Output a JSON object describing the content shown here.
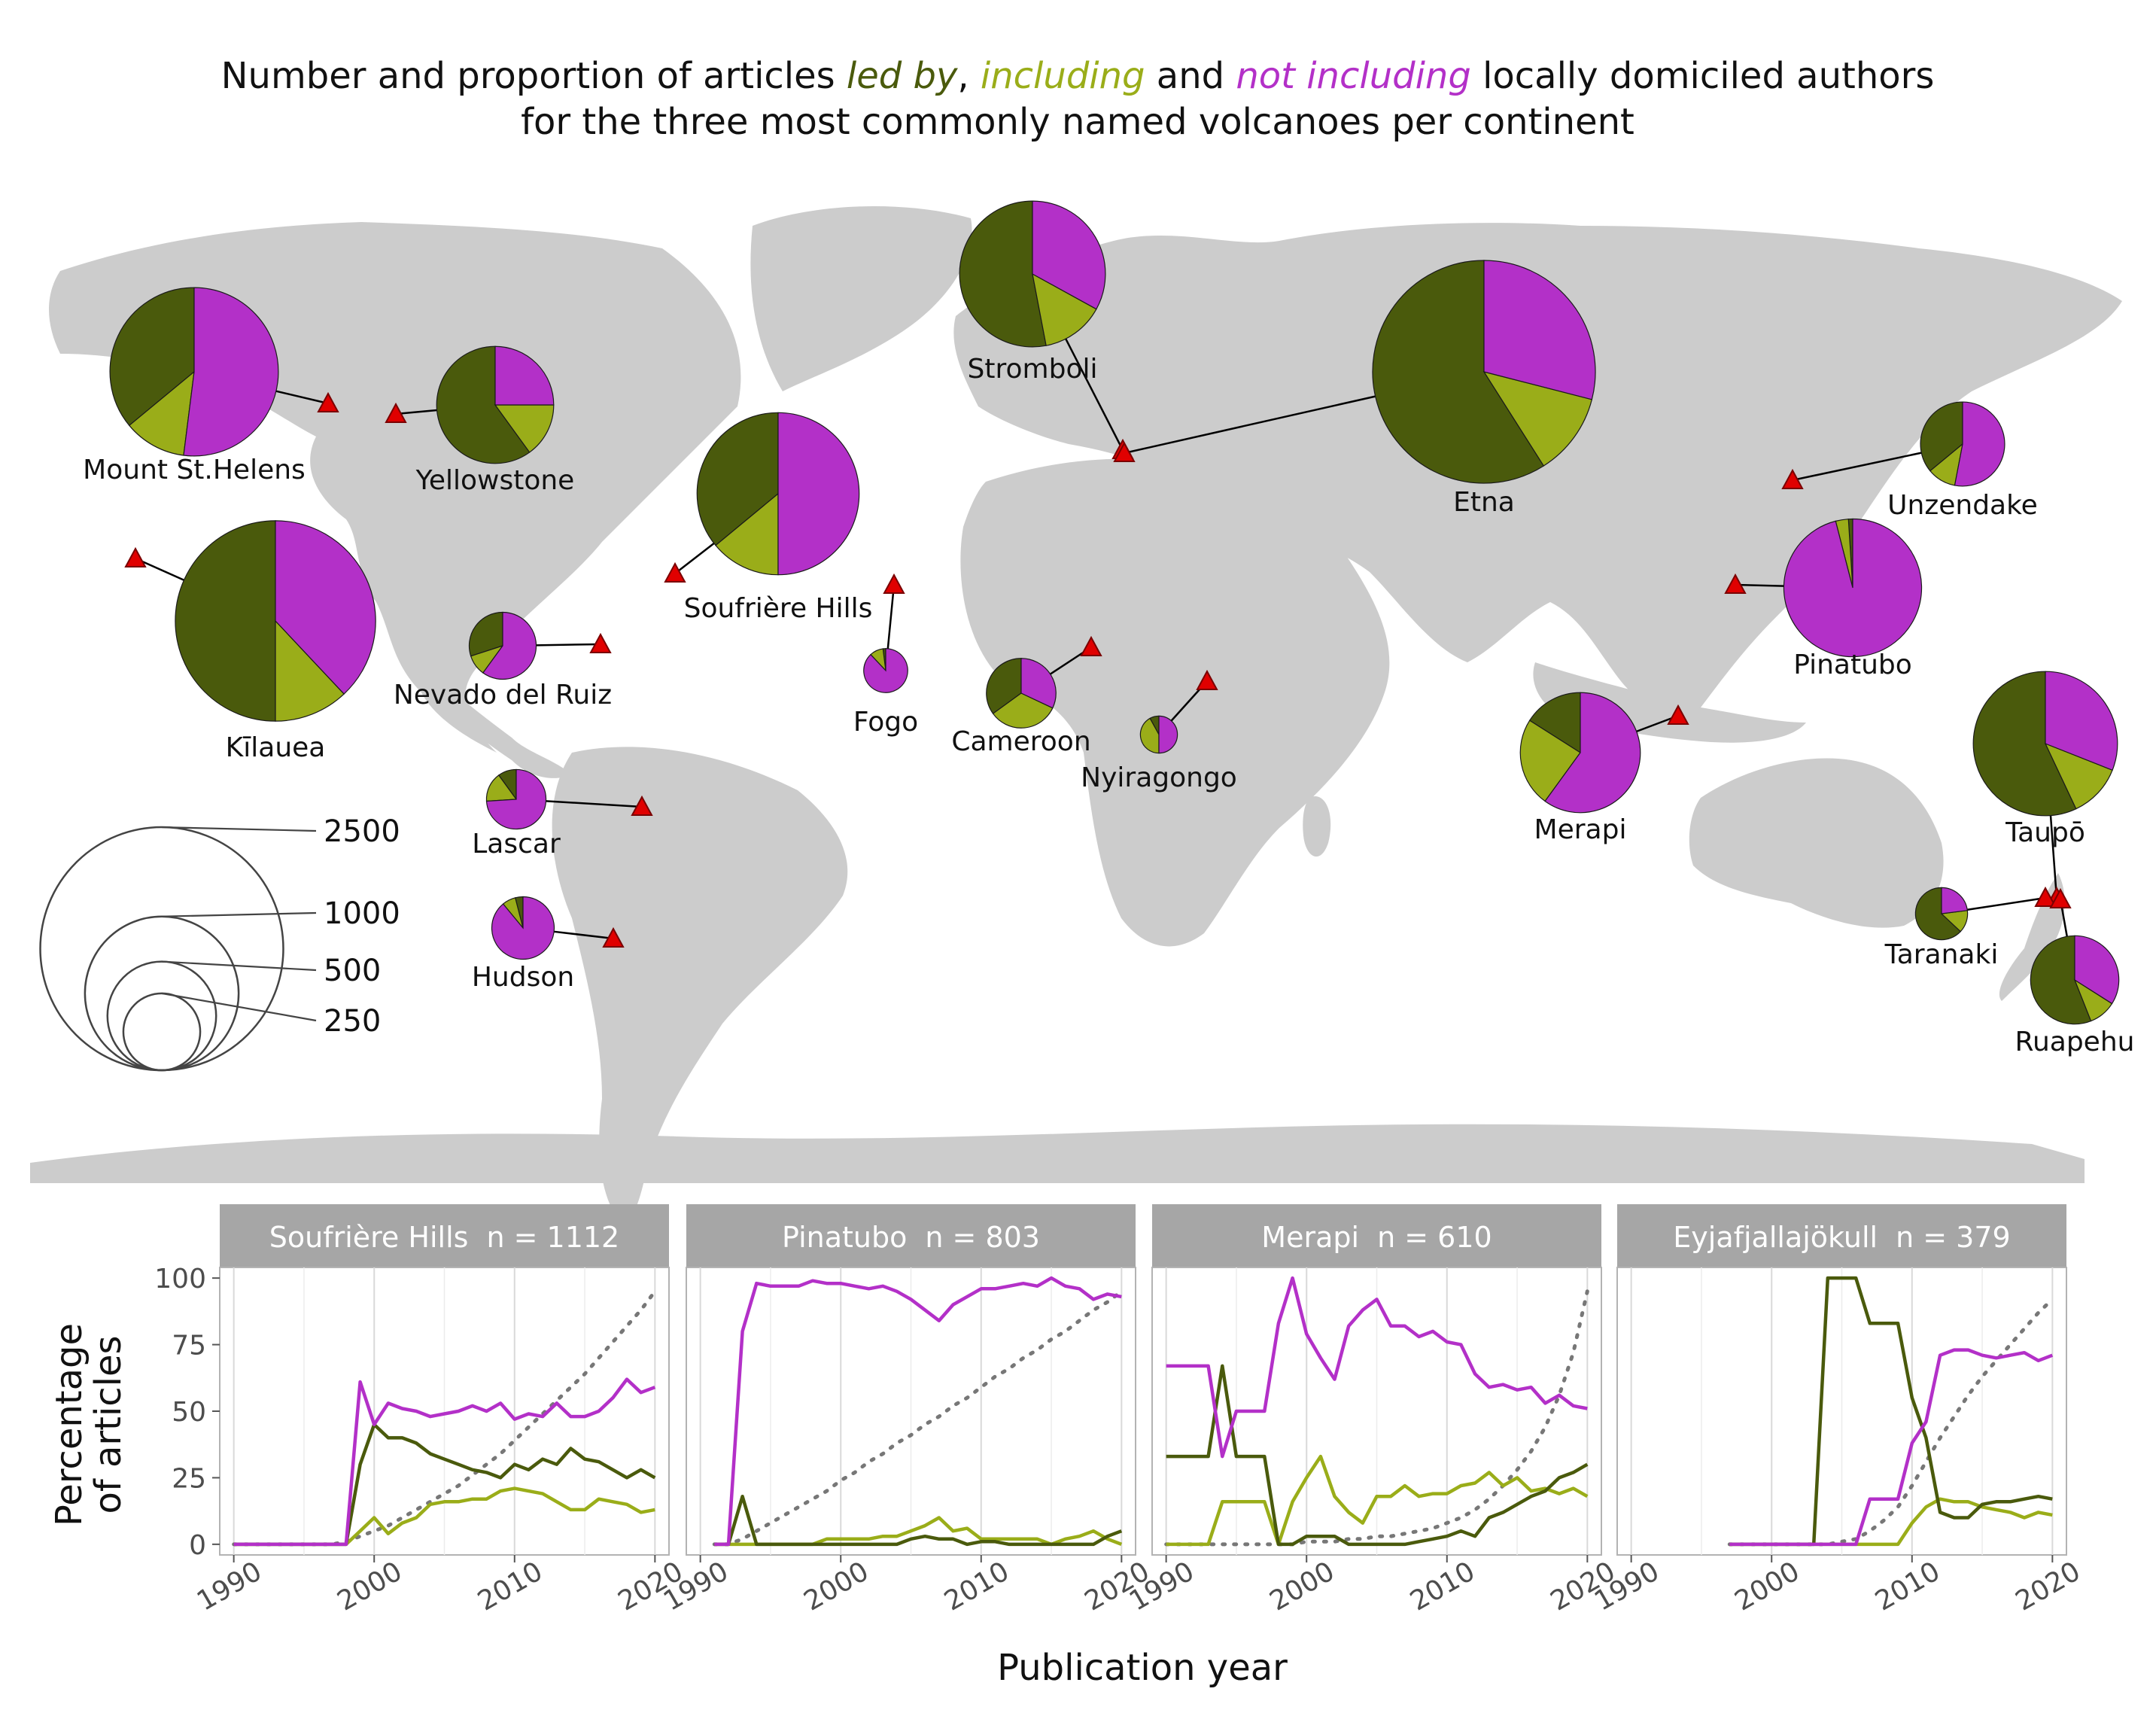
{
  "title": {
    "line1_pre": "Number and proportion of articles ",
    "led_by": "led by",
    "sep": ", ",
    "including": "including",
    "and": " and ",
    "not_including": "not including",
    "line1_post": " locally domiciled authors",
    "line2": "for the three most commonly named volcanoes per continent"
  },
  "colors": {
    "led_by": "#4a5a0c",
    "including": "#9aad19",
    "not_including": "#b330c8",
    "map": "#cccccc",
    "marker": "#e00000",
    "strip": "#a6a6a6",
    "dotted": "#777777"
  },
  "size_legend": {
    "labels": [
      "2500",
      "1000",
      "500",
      "250"
    ],
    "values": [
      2500,
      1000,
      500,
      250
    ]
  },
  "volcanoes": [
    {
      "name": "Mount St.Helens",
      "n": 1200,
      "shares": [
        0.36,
        0.12,
        0.52
      ]
    },
    {
      "name": "Yellowstone",
      "n": 580,
      "shares": [
        0.6,
        0.15,
        0.25
      ]
    },
    {
      "name": "Kīlauea",
      "n": 1700,
      "shares": [
        0.5,
        0.12,
        0.38
      ]
    },
    {
      "name": "Nevado del Ruiz",
      "n": 190,
      "shares": [
        0.3,
        0.1,
        0.6
      ]
    },
    {
      "name": "Lascar",
      "n": 150,
      "shares": [
        0.1,
        0.16,
        0.74
      ]
    },
    {
      "name": "Hudson",
      "n": 165,
      "shares": [
        0.04,
        0.07,
        0.89
      ]
    },
    {
      "name": "Soufrière Hills",
      "n": 1112,
      "shares": [
        0.36,
        0.14,
        0.5
      ]
    },
    {
      "name": "Fogo",
      "n": 82,
      "shares": [
        0.02,
        0.1,
        0.88
      ]
    },
    {
      "name": "Stromboli",
      "n": 900,
      "shares": [
        0.53,
        0.14,
        0.33
      ]
    },
    {
      "name": "Etna",
      "n": 2100,
      "shares": [
        0.59,
        0.12,
        0.29
      ]
    },
    {
      "name": "Cameroon",
      "n": 205,
      "shares": [
        0.35,
        0.33,
        0.32
      ]
    },
    {
      "name": "Nyiragongo",
      "n": 58,
      "shares": [
        0.08,
        0.42,
        0.5
      ]
    },
    {
      "name": "Unzendake",
      "n": 300,
      "shares": [
        0.36,
        0.11,
        0.53
      ]
    },
    {
      "name": "Pinatubo",
      "n": 803,
      "shares": [
        0.01,
        0.03,
        0.96
      ]
    },
    {
      "name": "Merapi",
      "n": 610,
      "shares": [
        0.16,
        0.24,
        0.6
      ]
    },
    {
      "name": "Taupō",
      "n": 880,
      "shares": [
        0.57,
        0.12,
        0.31
      ]
    },
    {
      "name": "Taranaki",
      "n": 115,
      "shares": [
        0.63,
        0.14,
        0.23
      ]
    },
    {
      "name": "Ruapehu",
      "n": 330,
      "shares": [
        0.56,
        0.1,
        0.34
      ]
    }
  ],
  "chart_data": {
    "type": "line",
    "xlabel": "Publication year",
    "ylabel_line1": "Percentage",
    "ylabel_line2": "of articles",
    "xlim": [
      1989,
      2021
    ],
    "ylim": [
      -4,
      104
    ],
    "xticks": [
      "1990",
      "2000",
      "2010",
      "2020"
    ],
    "yticks": [
      "0",
      "25",
      "50",
      "75",
      "100"
    ],
    "panels": [
      {
        "name": "Soufrière Hills",
        "n_label": "n = 1112",
        "n": 1112,
        "years": [
          1990,
          1991,
          1992,
          1993,
          1994,
          1995,
          1996,
          1997,
          1998,
          1999,
          2000,
          2001,
          2002,
          2003,
          2004,
          2005,
          2006,
          2007,
          2008,
          2009,
          2010,
          2011,
          2012,
          2013,
          2014,
          2015,
          2016,
          2017,
          2018,
          2019,
          2020
        ],
        "series": [
          {
            "name": "led by",
            "values": [
              0,
              0,
              0,
              0,
              0,
              0,
              0,
              0,
              0,
              30,
              45,
              40,
              40,
              38,
              34,
              32,
              30,
              28,
              27,
              25,
              30,
              28,
              32,
              30,
              36,
              32,
              31,
              28,
              25,
              28,
              25
            ]
          },
          {
            "name": "including",
            "values": [
              0,
              0,
              0,
              0,
              0,
              0,
              0,
              0,
              0,
              5,
              10,
              4,
              8,
              10,
              15,
              16,
              16,
              17,
              17,
              20,
              21,
              20,
              19,
              16,
              13,
              13,
              17,
              16,
              15,
              12,
              13
            ]
          },
          {
            "name": "not including",
            "values": [
              0,
              0,
              0,
              0,
              0,
              0,
              0,
              0,
              0,
              61,
              45,
              53,
              51,
              50,
              48,
              49,
              50,
              52,
              50,
              53,
              47,
              49,
              48,
              53,
              48,
              48,
              50,
              55,
              62,
              57,
              59
            ]
          },
          {
            "name": "cumulative",
            "values": [
              0,
              0,
              0,
              0,
              0,
              0,
              0,
              0,
              1,
              3,
              5,
              7,
              10,
              13,
              16,
              19,
              22,
              26,
              30,
              34,
              39,
              44,
              49,
              54,
              59,
              64,
              70,
              76,
              82,
              88,
              95
            ]
          }
        ]
      },
      {
        "name": "Pinatubo",
        "n_label": "n = 803",
        "n": 803,
        "years": [
          1991,
          1992,
          1993,
          1994,
          1995,
          1996,
          1997,
          1998,
          1999,
          2000,
          2001,
          2002,
          2003,
          2004,
          2005,
          2006,
          2007,
          2008,
          2009,
          2010,
          2011,
          2012,
          2013,
          2014,
          2015,
          2016,
          2017,
          2018,
          2019,
          2020
        ],
        "series": [
          {
            "name": "led by",
            "values": [
              0,
              0,
              18,
              0,
              0,
              0,
              0,
              0,
              0,
              0,
              0,
              0,
              0,
              0,
              2,
              3,
              2,
              2,
              0,
              1,
              1,
              0,
              0,
              0,
              0,
              0,
              0,
              0,
              3,
              5
            ]
          },
          {
            "name": "including",
            "values": [
              0,
              0,
              0,
              0,
              0,
              0,
              0,
              0,
              2,
              2,
              2,
              2,
              3,
              3,
              5,
              7,
              10,
              5,
              6,
              2,
              2,
              2,
              2,
              2,
              0,
              2,
              3,
              5,
              2,
              0
            ]
          },
          {
            "name": "not including",
            "values": [
              0,
              0,
              80,
              98,
              97,
              97,
              97,
              99,
              98,
              98,
              97,
              96,
              97,
              95,
              92,
              88,
              84,
              90,
              93,
              96,
              96,
              97,
              98,
              97,
              100,
              97,
              96,
              92,
              94,
              93
            ]
          },
          {
            "name": "cumulative",
            "values": [
              0,
              0,
              2,
              5,
              8,
              11,
              14,
              17,
              20,
              24,
              27,
              31,
              34,
              38,
              41,
              45,
              48,
              52,
              55,
              59,
              63,
              66,
              70,
              73,
              77,
              80,
              84,
              88,
              91,
              95
            ]
          }
        ]
      },
      {
        "name": "Merapi",
        "n_label": "n = 610",
        "n": 610,
        "years": [
          1990,
          1991,
          1992,
          1993,
          1994,
          1995,
          1996,
          1997,
          1998,
          1999,
          2000,
          2001,
          2002,
          2003,
          2004,
          2005,
          2006,
          2007,
          2008,
          2009,
          2010,
          2011,
          2012,
          2013,
          2014,
          2015,
          2016,
          2017,
          2018,
          2019,
          2020
        ],
        "series": [
          {
            "name": "led by",
            "values": [
              33,
              33,
              33,
              33,
              67,
              33,
              33,
              33,
              0,
              0,
              3,
              3,
              3,
              0,
              0,
              0,
              0,
              0,
              1,
              2,
              3,
              5,
              3,
              10,
              12,
              15,
              18,
              20,
              25,
              27,
              30
            ]
          },
          {
            "name": "including",
            "values": [
              0,
              0,
              0,
              0,
              16,
              16,
              16,
              16,
              0,
              16,
              25,
              33,
              18,
              12,
              8,
              18,
              18,
              22,
              18,
              19,
              19,
              22,
              23,
              27,
              22,
              25,
              20,
              21,
              19,
              21,
              18
            ]
          },
          {
            "name": "not including",
            "values": [
              67,
              67,
              67,
              67,
              33,
              50,
              50,
              50,
              83,
              100,
              79,
              70,
              62,
              82,
              88,
              92,
              82,
              82,
              78,
              80,
              76,
              75,
              64,
              59,
              60,
              58,
              59,
              53,
              56,
              52,
              51
            ]
          },
          {
            "name": "cumulative",
            "values": [
              0,
              0,
              0,
              0,
              0,
              0,
              0,
              0,
              0,
              0,
              1,
              1,
              1,
              2,
              2,
              3,
              3,
              4,
              5,
              6,
              8,
              10,
              13,
              17,
              22,
              28,
              35,
              44,
              56,
              72,
              95
            ]
          }
        ]
      },
      {
        "name": "Eyjafjallajökull",
        "n_label": "n = 379",
        "n": 379,
        "years": [
          1997,
          1998,
          1999,
          2000,
          2001,
          2002,
          2003,
          2004,
          2005,
          2006,
          2007,
          2008,
          2009,
          2010,
          2011,
          2012,
          2013,
          2014,
          2015,
          2016,
          2017,
          2018,
          2019,
          2020
        ],
        "series": [
          {
            "name": "led by",
            "values": [
              0,
              0,
              0,
              0,
              0,
              0,
              0,
              100,
              100,
              100,
              83,
              83,
              83,
              55,
              40,
              12,
              10,
              10,
              15,
              16,
              16,
              17,
              18,
              17
            ]
          },
          {
            "name": "including",
            "values": [
              0,
              0,
              0,
              0,
              0,
              0,
              0,
              0,
              0,
              0,
              0,
              0,
              0,
              8,
              14,
              17,
              16,
              16,
              14,
              13,
              12,
              10,
              12,
              11
            ]
          },
          {
            "name": "not including",
            "values": [
              0,
              0,
              0,
              0,
              0,
              0,
              0,
              0,
              0,
              0,
              17,
              17,
              17,
              38,
              46,
              71,
              73,
              73,
              71,
              70,
              71,
              72,
              69,
              71
            ]
          },
          {
            "name": "cumulative",
            "values": [
              0,
              0,
              0,
              0,
              0,
              0,
              0,
              0,
              1,
              2,
              5,
              9,
              14,
              22,
              31,
              40,
              48,
              56,
              63,
              69,
              75,
              81,
              87,
              92
            ]
          }
        ]
      }
    ]
  }
}
